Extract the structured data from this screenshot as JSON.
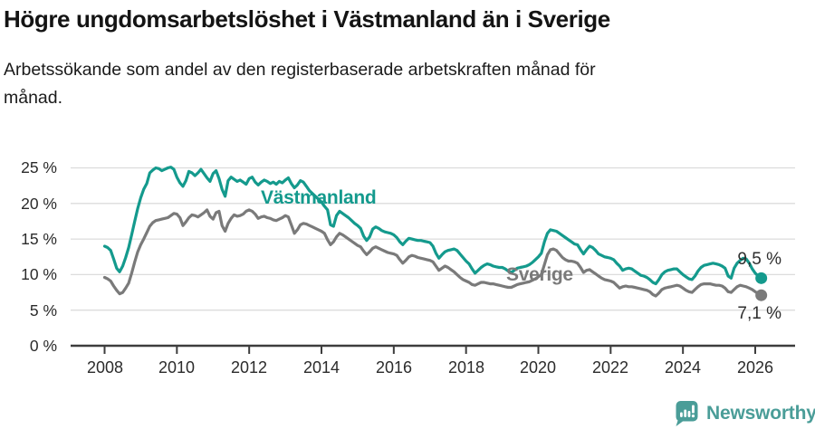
{
  "title": "Högre ungdomsarbetslöshet i Västmanland än i Sverige",
  "subtitle": {
    "line1": "Arbetssökande som andel av den registerbaserade arbetskraften månad för",
    "line2": "månad."
  },
  "footer": {
    "brand": "Newsworthy",
    "brand_color": "#4a9d98",
    "logo_icon": "speech-bubble-bar-chart-exclamation-icon"
  },
  "chart_data": {
    "type": "line",
    "title": "Högre ungdomsarbetslöshet i Västmanland än i Sverige",
    "subtitle": "Arbetssökande som andel av den registerbaserade arbetskraften månad för månad.",
    "x_start": "2008-01",
    "x_end": "2026-03",
    "points_per_year": 12,
    "ylim": [
      0,
      25
    ],
    "grid": "horizontal-only",
    "legend_position": "inline-labels",
    "y_tick_labels": [
      "25 %",
      "20 %",
      "15 %",
      "10 %",
      "5 %",
      "0 %"
    ],
    "x_tick_years": [
      "2008",
      "2010",
      "2012",
      "2014",
      "2016",
      "2018",
      "2020",
      "2022",
      "2024",
      "2026"
    ],
    "colors": {
      "grid": "#dcdcdc",
      "axis": "#3d3d3d",
      "tick_text": "#2b2b2b"
    },
    "series": [
      {
        "name": "Västmanland",
        "color": "#149a8d",
        "end_label": "9,5 %",
        "last_value": 9.5,
        "values": [
          14.0,
          13.8,
          13.4,
          12.2,
          10.9,
          10.4,
          11.2,
          12.4,
          13.8,
          15.6,
          17.5,
          19.3,
          20.8,
          22.0,
          22.8,
          24.3,
          24.7,
          25.0,
          24.9,
          24.6,
          24.8,
          25.0,
          25.1,
          24.8,
          23.7,
          22.9,
          22.4,
          23.2,
          24.5,
          24.3,
          23.9,
          24.3,
          24.8,
          24.2,
          23.6,
          23.1,
          24.2,
          24.6,
          23.5,
          22.0,
          21.0,
          23.2,
          23.7,
          23.4,
          23.1,
          23.3,
          23.0,
          22.7,
          23.5,
          23.7,
          23.0,
          22.6,
          23.0,
          23.3,
          23.1,
          22.8,
          23.0,
          22.7,
          23.1,
          22.9,
          23.3,
          23.6,
          22.8,
          22.2,
          22.6,
          23.2,
          23.0,
          22.4,
          21.8,
          21.4,
          21.0,
          20.6,
          20.2,
          19.6,
          19.1,
          17.0,
          16.8,
          18.3,
          18.9,
          18.6,
          18.3,
          18.0,
          17.6,
          17.2,
          16.9,
          16.5,
          15.4,
          14.8,
          15.3,
          16.4,
          16.7,
          16.5,
          16.2,
          16.0,
          15.9,
          15.8,
          15.6,
          15.2,
          14.6,
          14.2,
          14.7,
          15.1,
          15.0,
          14.9,
          14.8,
          14.8,
          14.7,
          14.6,
          14.5,
          14.0,
          13.0,
          12.3,
          12.8,
          13.2,
          13.4,
          13.5,
          13.6,
          13.4,
          12.9,
          12.4,
          11.9,
          11.5,
          10.8,
          10.2,
          10.6,
          11.0,
          11.3,
          11.5,
          11.4,
          11.2,
          11.1,
          11.0,
          11.0,
          10.8,
          10.5,
          10.3,
          10.6,
          10.9,
          11.0,
          11.1,
          11.2,
          11.4,
          11.7,
          12.1,
          12.5,
          13.0,
          14.6,
          15.8,
          16.3,
          16.2,
          16.1,
          15.8,
          15.5,
          15.2,
          14.9,
          14.6,
          14.3,
          14.2,
          13.5,
          12.9,
          13.5,
          14.0,
          13.8,
          13.4,
          12.9,
          12.7,
          12.5,
          12.4,
          12.3,
          12.1,
          11.6,
          11.2,
          10.6,
          10.8,
          10.9,
          10.8,
          10.5,
          10.2,
          9.9,
          9.8,
          9.6,
          9.3,
          8.9,
          8.7,
          9.3,
          10.0,
          10.4,
          10.6,
          10.7,
          10.8,
          10.8,
          10.4,
          10.0,
          9.7,
          9.4,
          9.3,
          9.8,
          10.5,
          11.0,
          11.3,
          11.4,
          11.5,
          11.6,
          11.5,
          11.4,
          11.2,
          10.9,
          9.8,
          9.5,
          10.9,
          11.6,
          12.0,
          12.3,
          12.2,
          11.6,
          10.8,
          10.2,
          9.8,
          9.5
        ]
      },
      {
        "name": "Sverige",
        "color": "#7a7a7a",
        "end_label": "7,1 %",
        "last_value": 7.1,
        "values": [
          9.6,
          9.4,
          9.1,
          8.4,
          7.8,
          7.3,
          7.5,
          8.1,
          8.8,
          10.2,
          11.8,
          13.2,
          14.2,
          15.0,
          15.9,
          16.8,
          17.3,
          17.6,
          17.7,
          17.8,
          17.9,
          18.0,
          18.3,
          18.6,
          18.5,
          18.0,
          16.9,
          17.4,
          18.0,
          18.4,
          18.3,
          18.1,
          18.4,
          18.7,
          19.1,
          18.2,
          17.8,
          18.7,
          18.9,
          16.9,
          16.1,
          17.2,
          17.9,
          18.4,
          18.2,
          18.3,
          18.5,
          18.9,
          19.1,
          18.9,
          18.5,
          17.9,
          18.1,
          18.2,
          18.0,
          17.9,
          17.7,
          17.6,
          17.8,
          18.0,
          18.3,
          18.1,
          17.0,
          15.8,
          16.3,
          17.0,
          17.2,
          17.1,
          16.9,
          16.7,
          16.5,
          16.3,
          16.1,
          15.8,
          14.9,
          14.2,
          14.6,
          15.3,
          15.8,
          15.6,
          15.3,
          15.0,
          14.7,
          14.4,
          14.1,
          13.9,
          13.3,
          12.8,
          13.2,
          13.7,
          13.9,
          13.7,
          13.5,
          13.3,
          13.1,
          13.0,
          12.9,
          12.7,
          12.1,
          11.6,
          12.0,
          12.5,
          12.7,
          12.6,
          12.4,
          12.3,
          12.2,
          12.1,
          12.0,
          11.8,
          11.2,
          10.6,
          10.9,
          11.2,
          11.0,
          10.7,
          10.4,
          10.0,
          9.6,
          9.3,
          9.1,
          8.9,
          8.6,
          8.5,
          8.7,
          8.9,
          8.9,
          8.8,
          8.7,
          8.7,
          8.6,
          8.5,
          8.4,
          8.3,
          8.2,
          8.2,
          8.4,
          8.6,
          8.7,
          8.8,
          8.9,
          9.0,
          9.2,
          9.4,
          9.7,
          10.0,
          11.4,
          12.8,
          13.5,
          13.6,
          13.4,
          12.9,
          12.4,
          12.1,
          11.9,
          11.9,
          11.8,
          11.6,
          11.0,
          10.3,
          10.6,
          10.7,
          10.4,
          10.1,
          9.8,
          9.5,
          9.3,
          9.2,
          9.1,
          8.9,
          8.5,
          8.1,
          8.3,
          8.4,
          8.3,
          8.3,
          8.2,
          8.1,
          8.0,
          7.9,
          7.8,
          7.6,
          7.2,
          7.0,
          7.4,
          7.9,
          8.1,
          8.2,
          8.3,
          8.4,
          8.5,
          8.4,
          8.1,
          7.8,
          7.6,
          7.5,
          7.9,
          8.3,
          8.6,
          8.7,
          8.7,
          8.7,
          8.6,
          8.5,
          8.5,
          8.4,
          8.1,
          7.6,
          7.5,
          7.9,
          8.3,
          8.5,
          8.4,
          8.3,
          8.1,
          7.9,
          7.6,
          7.3,
          7.1
        ]
      }
    ]
  }
}
